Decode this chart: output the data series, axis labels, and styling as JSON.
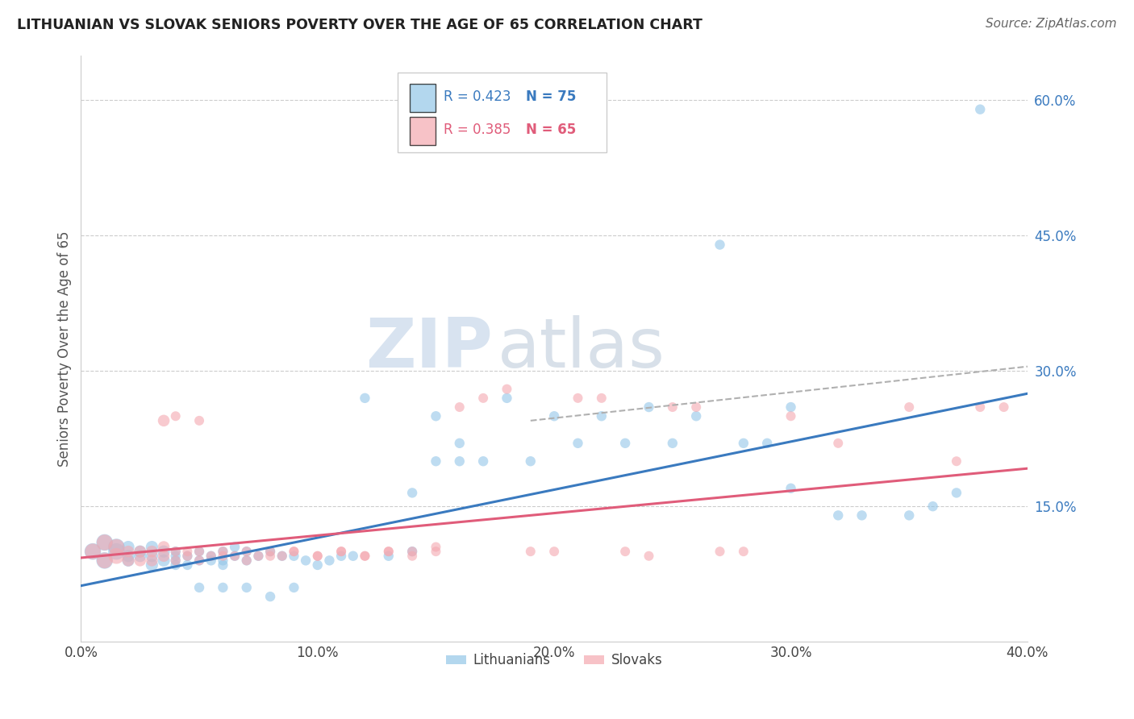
{
  "title": "LITHUANIAN VS SLOVAK SENIORS POVERTY OVER THE AGE OF 65 CORRELATION CHART",
  "source": "Source: ZipAtlas.com",
  "ylabel": "Seniors Poverty Over the Age of 65",
  "xlabel_ticks": [
    "0.0%",
    "10.0%",
    "20.0%",
    "30.0%",
    "40.0%"
  ],
  "xlabel_vals": [
    0.0,
    0.1,
    0.2,
    0.3,
    0.4
  ],
  "ylabel_ticks": [
    "15.0%",
    "30.0%",
    "45.0%",
    "60.0%"
  ],
  "ylabel_vals": [
    0.15,
    0.3,
    0.45,
    0.6
  ],
  "xmin": 0.0,
  "xmax": 0.4,
  "ymin": 0.0,
  "ymax": 0.65,
  "blue_color": "#93c6e8",
  "pink_color": "#f4a8b0",
  "blue_line_color": "#3a7abf",
  "pink_line_color": "#e05c7a",
  "dashed_line_color": "#b0b0b0",
  "legend_blue_R": "R = 0.423",
  "legend_blue_N": "N = 75",
  "legend_pink_R": "R = 0.385",
  "legend_pink_N": "N = 65",
  "watermark_zip": "ZIP",
  "watermark_atlas": "atlas",
  "blue_scatter_x": [
    0.005,
    0.01,
    0.01,
    0.015,
    0.015,
    0.02,
    0.02,
    0.02,
    0.025,
    0.025,
    0.03,
    0.03,
    0.03,
    0.035,
    0.035,
    0.04,
    0.04,
    0.04,
    0.04,
    0.045,
    0.045,
    0.05,
    0.05,
    0.055,
    0.055,
    0.06,
    0.06,
    0.06,
    0.065,
    0.065,
    0.07,
    0.07,
    0.075,
    0.08,
    0.085,
    0.09,
    0.095,
    0.1,
    0.105,
    0.11,
    0.115,
    0.12,
    0.13,
    0.14,
    0.15,
    0.16,
    0.17,
    0.18,
    0.19,
    0.2,
    0.21,
    0.22,
    0.23,
    0.24,
    0.25,
    0.26,
    0.27,
    0.28,
    0.29,
    0.3,
    0.3,
    0.32,
    0.33,
    0.35,
    0.36,
    0.37,
    0.38,
    0.14,
    0.15,
    0.16,
    0.05,
    0.06,
    0.07,
    0.08,
    0.09
  ],
  "blue_scatter_y": [
    0.1,
    0.09,
    0.11,
    0.1,
    0.105,
    0.09,
    0.095,
    0.105,
    0.1,
    0.095,
    0.085,
    0.095,
    0.105,
    0.09,
    0.1,
    0.085,
    0.09,
    0.095,
    0.1,
    0.085,
    0.095,
    0.09,
    0.1,
    0.09,
    0.095,
    0.085,
    0.09,
    0.1,
    0.095,
    0.105,
    0.09,
    0.1,
    0.095,
    0.1,
    0.095,
    0.095,
    0.09,
    0.085,
    0.09,
    0.095,
    0.095,
    0.27,
    0.095,
    0.1,
    0.25,
    0.2,
    0.2,
    0.27,
    0.2,
    0.25,
    0.22,
    0.25,
    0.22,
    0.26,
    0.22,
    0.25,
    0.44,
    0.22,
    0.22,
    0.26,
    0.17,
    0.14,
    0.14,
    0.14,
    0.15,
    0.165,
    0.59,
    0.165,
    0.2,
    0.22,
    0.06,
    0.06,
    0.06,
    0.05,
    0.06
  ],
  "pink_scatter_x": [
    0.005,
    0.01,
    0.01,
    0.015,
    0.015,
    0.02,
    0.02,
    0.025,
    0.025,
    0.03,
    0.03,
    0.035,
    0.035,
    0.04,
    0.04,
    0.045,
    0.045,
    0.05,
    0.05,
    0.055,
    0.06,
    0.065,
    0.07,
    0.075,
    0.08,
    0.085,
    0.09,
    0.1,
    0.11,
    0.12,
    0.13,
    0.14,
    0.15,
    0.16,
    0.17,
    0.18,
    0.19,
    0.2,
    0.21,
    0.22,
    0.23,
    0.24,
    0.25,
    0.26,
    0.27,
    0.28,
    0.3,
    0.32,
    0.35,
    0.37,
    0.38,
    0.39,
    0.06,
    0.07,
    0.08,
    0.09,
    0.1,
    0.11,
    0.12,
    0.13,
    0.14,
    0.15,
    0.035,
    0.04,
    0.05
  ],
  "pink_scatter_y": [
    0.1,
    0.09,
    0.11,
    0.095,
    0.105,
    0.09,
    0.1,
    0.09,
    0.1,
    0.09,
    0.1,
    0.095,
    0.105,
    0.09,
    0.1,
    0.095,
    0.1,
    0.09,
    0.1,
    0.095,
    0.1,
    0.095,
    0.09,
    0.095,
    0.1,
    0.095,
    0.1,
    0.095,
    0.1,
    0.095,
    0.1,
    0.1,
    0.105,
    0.26,
    0.27,
    0.28,
    0.1,
    0.1,
    0.27,
    0.27,
    0.1,
    0.095,
    0.26,
    0.26,
    0.1,
    0.1,
    0.25,
    0.22,
    0.26,
    0.2,
    0.26,
    0.26,
    0.095,
    0.1,
    0.095,
    0.1,
    0.095,
    0.1,
    0.095,
    0.1,
    0.095,
    0.1,
    0.245,
    0.25,
    0.245
  ],
  "blue_line_x": [
    0.0,
    0.4
  ],
  "blue_line_y": [
    0.062,
    0.275
  ],
  "pink_line_x": [
    0.0,
    0.4
  ],
  "pink_line_y": [
    0.093,
    0.192
  ],
  "dashed_line_x": [
    0.19,
    0.4
  ],
  "dashed_line_y": [
    0.245,
    0.305
  ]
}
